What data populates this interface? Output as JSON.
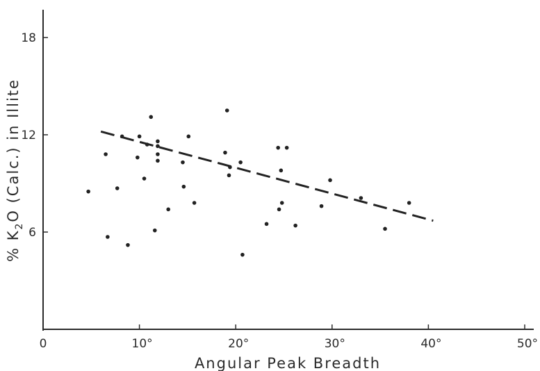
{
  "chart_data": {
    "type": "scatter",
    "title": "",
    "xlabel": "Angular Peak Breadth",
    "ylabel_parts": [
      "% K",
      "2",
      "O (Calc.) in Illite"
    ],
    "xlim": [
      0,
      50
    ],
    "ylim": [
      0,
      18
    ],
    "origin_label": "0",
    "x_ticks": [
      {
        "value": 10,
        "label": "10°"
      },
      {
        "value": 20,
        "label": "20°"
      },
      {
        "value": 30,
        "label": "30°"
      },
      {
        "value": 40,
        "label": "40°"
      },
      {
        "value": 50,
        "label": "50°"
      }
    ],
    "y_ticks": [
      {
        "value": 6,
        "label": "6"
      },
      {
        "value": 12,
        "label": "12"
      },
      {
        "value": 18,
        "label": "18"
      }
    ],
    "grid": false,
    "trendline": {
      "x": [
        6,
        40.5
      ],
      "y": [
        12.2,
        6.7
      ],
      "style": "dashed"
    },
    "points": [
      {
        "x": 4.7,
        "y": 8.5
      },
      {
        "x": 6.5,
        "y": 10.8
      },
      {
        "x": 6.7,
        "y": 5.7
      },
      {
        "x": 7.7,
        "y": 8.7
      },
      {
        "x": 8.2,
        "y": 11.9
      },
      {
        "x": 8.8,
        "y": 5.2
      },
      {
        "x": 9.8,
        "y": 10.6
      },
      {
        "x": 10.0,
        "y": 11.9
      },
      {
        "x": 10.5,
        "y": 9.3
      },
      {
        "x": 10.8,
        "y": 11.4
      },
      {
        "x": 11.2,
        "y": 13.1
      },
      {
        "x": 11.6,
        "y": 6.1
      },
      {
        "x": 11.9,
        "y": 11.6
      },
      {
        "x": 11.9,
        "y": 11.3
      },
      {
        "x": 11.9,
        "y": 10.8
      },
      {
        "x": 11.9,
        "y": 10.4
      },
      {
        "x": 13.0,
        "y": 7.4
      },
      {
        "x": 14.5,
        "y": 10.3
      },
      {
        "x": 14.6,
        "y": 8.8
      },
      {
        "x": 15.1,
        "y": 11.9
      },
      {
        "x": 15.7,
        "y": 7.8
      },
      {
        "x": 18.9,
        "y": 10.9
      },
      {
        "x": 19.1,
        "y": 13.5
      },
      {
        "x": 19.3,
        "y": 9.5
      },
      {
        "x": 19.4,
        "y": 10.0
      },
      {
        "x": 20.5,
        "y": 10.3
      },
      {
        "x": 20.7,
        "y": 4.6
      },
      {
        "x": 23.2,
        "y": 6.5
      },
      {
        "x": 24.4,
        "y": 11.2
      },
      {
        "x": 24.5,
        "y": 7.4
      },
      {
        "x": 24.7,
        "y": 9.8
      },
      {
        "x": 24.8,
        "y": 7.8
      },
      {
        "x": 25.3,
        "y": 11.2
      },
      {
        "x": 26.2,
        "y": 6.4
      },
      {
        "x": 28.9,
        "y": 7.6
      },
      {
        "x": 29.8,
        "y": 9.2
      },
      {
        "x": 33.0,
        "y": 8.1
      },
      {
        "x": 35.5,
        "y": 6.2
      },
      {
        "x": 38.0,
        "y": 7.8
      }
    ]
  }
}
